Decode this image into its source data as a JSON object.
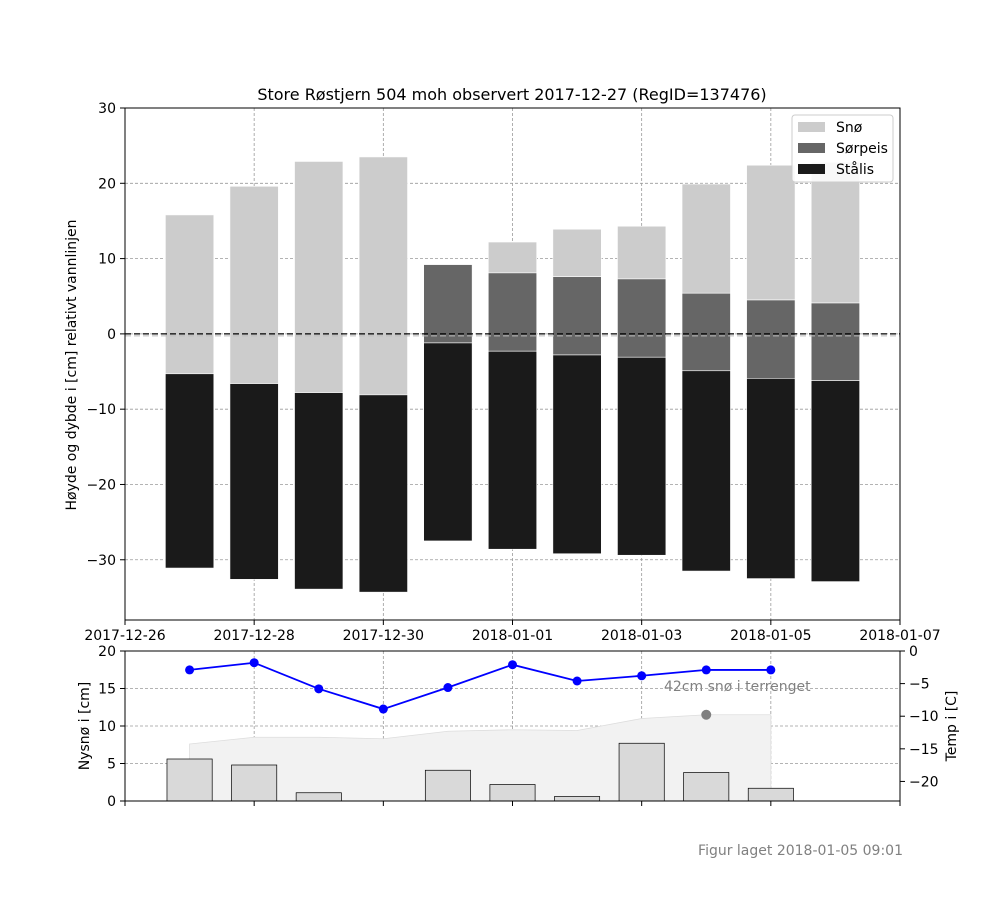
{
  "chart_data": [
    {
      "type": "bar",
      "title": "Store Røstjern 504 moh observert 2017-12-27 (RegID=137476)",
      "ylabel": "Høyde og dybde i [cm] relativt vannlinjen",
      "ylim": [
        -38,
        30
      ],
      "xlim": [
        "2017-12-26",
        "2018-01-07"
      ],
      "x_ticks": [
        "2017-12-26",
        "2017-12-28",
        "2017-12-30",
        "2018-01-01",
        "2018-01-03",
        "2018-01-05",
        "2018-01-07"
      ],
      "y_ticks": [
        30,
        20,
        10,
        0,
        -10,
        -20,
        -30
      ],
      "grid": true,
      "legend_placement": "top-right",
      "dates": [
        "2017-12-27",
        "2017-12-28",
        "2017-12-29",
        "2017-12-30",
        "2017-12-31",
        "2018-01-01",
        "2018-01-02",
        "2018-01-03",
        "2018-01-04",
        "2018-01-05",
        "2018-01-06"
      ],
      "series": [
        {
          "name": "Snø",
          "color": "#cccccc",
          "bottom": [
            -5.3,
            -6.6,
            -7.8,
            -8.1,
            null,
            8.1,
            7.6,
            7.3,
            5.4,
            4.5,
            4.1
          ],
          "top": [
            15.8,
            19.6,
            22.9,
            23.5,
            null,
            12.2,
            13.9,
            14.3,
            19.9,
            22.4,
            22.8
          ]
        },
        {
          "name": "Sørpeis",
          "color": "#666666",
          "bottom": [
            null,
            null,
            null,
            null,
            -1.2,
            -2.3,
            -2.8,
            -3.1,
            -4.9,
            -5.9,
            -6.2
          ],
          "top": [
            null,
            null,
            null,
            null,
            9.2,
            8.1,
            7.6,
            7.3,
            5.4,
            4.5,
            4.1
          ]
        },
        {
          "name": "Stålis",
          "color": "#1a1a1a",
          "bottom": [
            -31.1,
            -32.6,
            -33.9,
            -34.3,
            -27.5,
            -28.6,
            -29.2,
            -29.4,
            -31.5,
            -32.5,
            -32.9
          ],
          "top": [
            -5.3,
            -6.6,
            -7.8,
            -8.1,
            -1.2,
            -2.3,
            -2.8,
            -3.1,
            -4.9,
            -5.9,
            -6.2
          ]
        }
      ]
    },
    {
      "type": "bar",
      "ylabel": "Nysnø i [cm]",
      "ylim": [
        0,
        20
      ],
      "y_ticks": [
        0,
        5,
        10,
        15,
        20
      ],
      "grid": true,
      "dates": [
        "2017-12-27",
        "2017-12-28",
        "2017-12-29",
        "2017-12-30",
        "2017-12-31",
        "2018-01-01",
        "2018-01-02",
        "2018-01-03",
        "2018-01-04",
        "2018-01-05"
      ],
      "new_snow": [
        5.6,
        4.8,
        1.1,
        0.0,
        4.1,
        2.2,
        0.6,
        7.7,
        3.8,
        1.7
      ],
      "bar_color": "#d9d9d9",
      "terrain_snow_depth": [
        7.6,
        8.5,
        8.5,
        8.3,
        9.3,
        9.5,
        9.4,
        11.0,
        11.5,
        11.5
      ],
      "terrain_fill_color": "#f2f2f2",
      "observed_terrain_snow": {
        "date": "2018-01-04",
        "value": 11.5,
        "color": "#808080",
        "label": "42cm snø i terrenget"
      }
    },
    {
      "type": "line",
      "ylabel": "Temp i [C]",
      "ylim": [
        -23,
        0
      ],
      "y_ticks": [
        0,
        -5,
        -10,
        -15,
        -20
      ],
      "axis_side": "right",
      "color": "#0000ff",
      "dates": [
        "2017-12-27",
        "2017-12-28",
        "2017-12-29",
        "2017-12-30",
        "2017-12-31",
        "2018-01-01",
        "2018-01-02",
        "2018-01-03",
        "2018-01-04",
        "2018-01-05"
      ],
      "values": [
        -2.9,
        -1.8,
        -5.8,
        -8.9,
        -5.6,
        -2.1,
        -4.6,
        -3.8,
        -2.9,
        -2.9
      ]
    }
  ],
  "footer": "Figur laget 2018-01-05 09:01"
}
